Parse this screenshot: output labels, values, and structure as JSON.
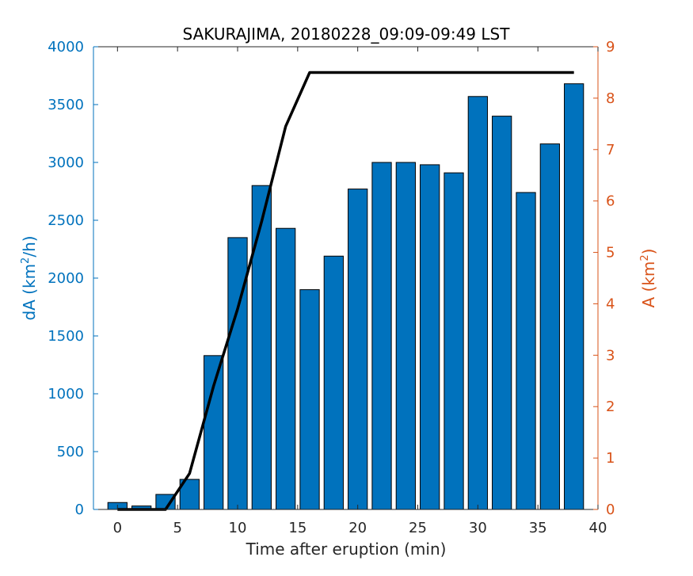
{
  "chart_data": {
    "type": "bar",
    "title": "SAKURAJIMA, 20180228_09:09-09:49 LST",
    "xlabel": "Time after eruption (min)",
    "ylabel_left": {
      "base": "dA (km",
      "sup": "2",
      "suffix": "/h)"
    },
    "ylabel_right": {
      "base": "A (km",
      "sup": "2",
      "suffix": ")"
    },
    "xlim": [
      -2,
      40
    ],
    "ylim_left": [
      0,
      4000
    ],
    "ylim_right": [
      0,
      9
    ],
    "x_ticks": [
      0,
      5,
      10,
      15,
      20,
      25,
      30,
      35,
      40
    ],
    "y_left_ticks": [
      0,
      500,
      1000,
      1500,
      2000,
      2500,
      3000,
      3500,
      4000
    ],
    "y_right_ticks": [
      0,
      1,
      2,
      3,
      4,
      5,
      6,
      7,
      8,
      9
    ],
    "colors": {
      "bars": "#0072BD",
      "line": "#000000",
      "left_axis": "#0072BD",
      "right_axis": "#D95319"
    },
    "bars": {
      "name": "dA",
      "x": [
        0,
        2,
        4,
        6,
        8,
        10,
        12,
        14,
        16,
        18,
        20,
        22,
        24,
        26,
        28,
        30,
        32,
        34,
        36,
        38
      ],
      "values": [
        60,
        30,
        130,
        260,
        1330,
        2350,
        2800,
        2430,
        1900,
        2190,
        2770,
        3000,
        3000,
        2980,
        2910,
        3570,
        3400,
        2740,
        3160,
        3680
      ],
      "width": 1.6
    },
    "line": {
      "name": "A",
      "x": [
        0,
        2,
        4,
        6,
        8,
        10,
        12,
        14,
        16,
        18,
        20,
        22,
        24,
        26,
        28,
        30,
        32,
        34,
        36,
        38
      ],
      "values": [
        0,
        0,
        0,
        0.7,
        2.4,
        3.9,
        5.6,
        7.45,
        8.5,
        8.5,
        8.5,
        8.5,
        8.5,
        8.5,
        8.5,
        8.5,
        8.5,
        8.5,
        8.5,
        8.5
      ]
    },
    "grid": false,
    "legend": "none"
  }
}
